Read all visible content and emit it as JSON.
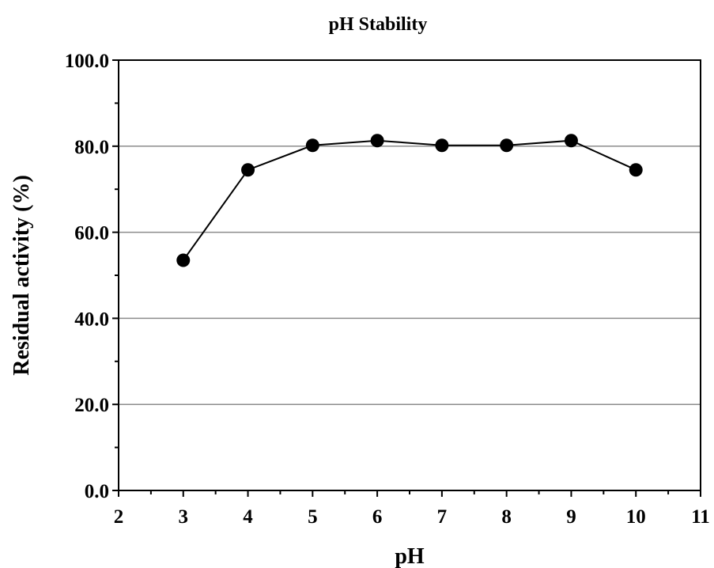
{
  "chart_data": {
    "type": "line",
    "title": "pH Stability",
    "xlabel": "pH",
    "ylabel": "Residual activity (%)",
    "xlim": [
      2,
      11
    ],
    "ylim": [
      0,
      100
    ],
    "x_ticks": [
      2,
      3,
      4,
      5,
      6,
      7,
      8,
      9,
      10,
      11
    ],
    "x_tick_labels": [
      "2",
      "3",
      "4",
      "5",
      "6",
      "7",
      "8",
      "9",
      "10",
      "11"
    ],
    "y_ticks": [
      0,
      20,
      40,
      60,
      80,
      100
    ],
    "y_tick_labels": [
      "0.0",
      "20.0",
      "40.0",
      "60.0",
      "80.0",
      "100.0"
    ],
    "grid": "horizontal-major",
    "legend": "none",
    "series": [
      {
        "x": [
          3,
          4,
          5,
          6,
          7,
          8,
          9,
          10
        ],
        "values": [
          53.5,
          74.5,
          80.2,
          81.3,
          80.2,
          80.2,
          81.3,
          74.5
        ],
        "color": "#000000",
        "marker": "circle"
      }
    ]
  }
}
